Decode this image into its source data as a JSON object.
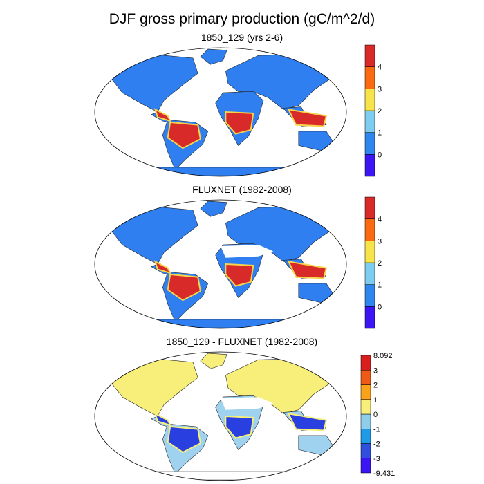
{
  "title": "DJF gross primary production (gC/m^2/d)",
  "panels": [
    {
      "id": "model",
      "title": "1850_129 (yrs 2-6)",
      "colorbar": {
        "colors": [
          "#3b16f2",
          "#2f86ee",
          "#7ecdf1",
          "#f7e34a",
          "#fb6a10",
          "#d92a2a"
        ],
        "labels": [
          "0",
          "1",
          "2",
          "3",
          "4"
        ]
      },
      "land_palette": {
        "base": "#2f7ff0",
        "tropic": "#d92a2a",
        "edge": "#f7d34a",
        "cold": "#2f7ff0"
      }
    },
    {
      "id": "obs",
      "title": "FLUXNET (1982-2008)",
      "colorbar": {
        "colors": [
          "#3b16f2",
          "#2f86ee",
          "#7ecdf1",
          "#f7e34a",
          "#fb6a10",
          "#d92a2a"
        ],
        "labels": [
          "0",
          "1",
          "2",
          "3",
          "4"
        ]
      },
      "land_palette": {
        "base": "#2f7ff0",
        "tropic": "#d92a2a",
        "edge": "#f7d34a",
        "cold": "#2f7ff0"
      }
    },
    {
      "id": "diff",
      "title": "1850_129 - FLUXNET (1982-2008)",
      "colorbar": {
        "colors": [
          "#3b16f2",
          "#2f4fdc",
          "#1e9ae6",
          "#8fcdea",
          "#f7ef7a",
          "#f9a21a",
          "#ef5a16",
          "#d91e1e"
        ],
        "labels": [
          "-9.431",
          "-3",
          "-2",
          "-1",
          "0",
          "1",
          "2",
          "3",
          "8.092"
        ]
      },
      "land_palette": {
        "base": "#9fd2ee",
        "tropic": "#2a3fe0",
        "edge": "#f7ef7a",
        "cold": "#f7ef7a"
      }
    }
  ]
}
